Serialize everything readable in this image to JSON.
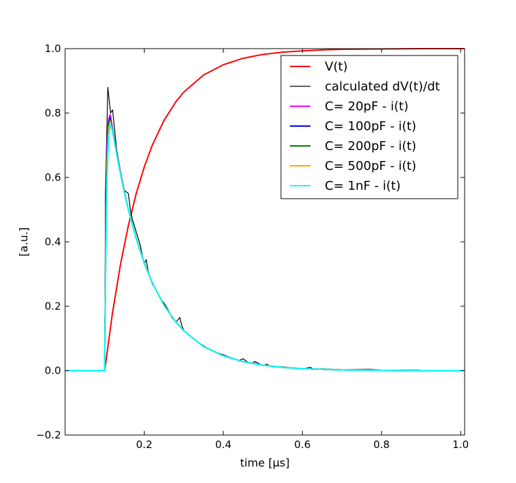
{
  "chart_data": {
    "type": "line",
    "xlabel": "time [μs]",
    "ylabel": "[a.u.]",
    "xlim": [
      0.0,
      1.01
    ],
    "ylim": [
      -0.2,
      1.0
    ],
    "x_ticks": [
      0.2,
      0.4,
      0.6,
      0.8,
      1.0
    ],
    "x_tick_labels": [
      "0.2",
      "0.4",
      "0.6",
      "0.8",
      "1.0"
    ],
    "y_ticks": [
      -0.2,
      0.0,
      0.2,
      0.4,
      0.6,
      0.8,
      1.0
    ],
    "y_tick_labels": [
      "−0.2",
      "0.0",
      "0.2",
      "0.4",
      "0.6",
      "0.8",
      "1.0"
    ],
    "grid": false,
    "legend_position": "top-right",
    "series": [
      {
        "name": "V(t)",
        "color": "#ff0000",
        "x": [
          0.0,
          0.1,
          0.12,
          0.14,
          0.16,
          0.18,
          0.2,
          0.22,
          0.25,
          0.28,
          0.3,
          0.35,
          0.4,
          0.45,
          0.5,
          0.55,
          0.6,
          0.65,
          0.7,
          0.8,
          0.9,
          1.01
        ],
        "y": [
          0.0,
          0.0,
          0.181,
          0.33,
          0.451,
          0.551,
          0.632,
          0.699,
          0.777,
          0.835,
          0.865,
          0.918,
          0.95,
          0.97,
          0.982,
          0.989,
          0.993,
          0.996,
          0.998,
          0.999,
          1.0,
          1.0
        ]
      },
      {
        "name": "calculated dV(t)/dt",
        "color": "#000000",
        "x": [
          0.0,
          0.1,
          0.102,
          0.108,
          0.115,
          0.12,
          0.13,
          0.14,
          0.15,
          0.16,
          0.165,
          0.17,
          0.18,
          0.19,
          0.2,
          0.205,
          0.21,
          0.22,
          0.23,
          0.24,
          0.25,
          0.26,
          0.27,
          0.28,
          0.29,
          0.295,
          0.3,
          0.32,
          0.34,
          0.36,
          0.38,
          0.4,
          0.42,
          0.44,
          0.45,
          0.46,
          0.47,
          0.48,
          0.5,
          0.51,
          0.52,
          0.55,
          0.6,
          0.62,
          0.63,
          0.65,
          0.7,
          0.77,
          0.8,
          0.88,
          0.9,
          1.01
        ],
        "y": [
          0.0,
          0.0,
          0.55,
          0.88,
          0.8,
          0.81,
          0.69,
          0.62,
          0.56,
          0.55,
          0.5,
          0.47,
          0.43,
          0.39,
          0.33,
          0.345,
          0.31,
          0.27,
          0.25,
          0.225,
          0.21,
          0.19,
          0.165,
          0.15,
          0.165,
          0.14,
          0.125,
          0.105,
          0.085,
          0.07,
          0.058,
          0.049,
          0.04,
          0.032,
          0.037,
          0.028,
          0.022,
          0.028,
          0.016,
          0.02,
          0.013,
          0.012,
          0.006,
          0.01,
          0.004,
          0.006,
          0.003,
          0.004,
          0.002,
          0.002,
          0.001,
          0.0
        ]
      },
      {
        "name": "C= 20pF - i(t)",
        "color": "#ff00ff",
        "x": [
          0.0,
          0.1,
          0.103,
          0.106,
          0.11,
          0.114,
          0.12,
          0.13,
          0.14,
          0.15,
          0.16,
          0.18,
          0.2,
          0.22,
          0.25,
          0.28,
          0.3,
          0.35,
          0.4,
          0.45,
          0.5,
          0.55,
          0.6,
          0.7,
          0.8,
          0.9,
          1.01
        ],
        "y": [
          0.0,
          0.0,
          0.45,
          0.7,
          0.78,
          0.795,
          0.75,
          0.68,
          0.615,
          0.555,
          0.5,
          0.41,
          0.335,
          0.274,
          0.203,
          0.151,
          0.124,
          0.075,
          0.046,
          0.028,
          0.017,
          0.01,
          0.006,
          0.002,
          0.001,
          0.0,
          0.0
        ]
      },
      {
        "name": "C= 100pF - i(t)",
        "color": "#0000ff",
        "x": [
          0.0,
          0.1,
          0.103,
          0.106,
          0.11,
          0.114,
          0.12,
          0.13,
          0.14,
          0.15,
          0.16,
          0.18,
          0.2,
          0.22,
          0.25,
          0.28,
          0.3,
          0.35,
          0.4,
          0.45,
          0.5,
          0.55,
          0.6,
          0.7,
          0.8,
          0.9,
          1.01
        ],
        "y": [
          0.0,
          0.0,
          0.43,
          0.68,
          0.77,
          0.787,
          0.748,
          0.678,
          0.613,
          0.554,
          0.5,
          0.41,
          0.335,
          0.274,
          0.203,
          0.151,
          0.124,
          0.075,
          0.046,
          0.028,
          0.017,
          0.01,
          0.006,
          0.002,
          0.001,
          0.0,
          0.0
        ]
      },
      {
        "name": "C= 200pF - i(t)",
        "color": "#008000",
        "x": [
          0.0,
          0.1,
          0.103,
          0.106,
          0.11,
          0.114,
          0.12,
          0.13,
          0.14,
          0.15,
          0.16,
          0.18,
          0.2,
          0.22,
          0.25,
          0.28,
          0.3,
          0.35,
          0.4,
          0.45,
          0.5,
          0.55,
          0.6,
          0.7,
          0.8,
          0.9,
          1.01
        ],
        "y": [
          0.0,
          0.0,
          0.41,
          0.66,
          0.76,
          0.78,
          0.746,
          0.677,
          0.612,
          0.553,
          0.5,
          0.41,
          0.335,
          0.274,
          0.203,
          0.151,
          0.124,
          0.075,
          0.046,
          0.028,
          0.017,
          0.01,
          0.006,
          0.002,
          0.001,
          0.0,
          0.0
        ]
      },
      {
        "name": "C= 500pF - i(t)",
        "color": "#ffa500",
        "x": [
          0.0,
          0.1,
          0.103,
          0.106,
          0.11,
          0.114,
          0.12,
          0.13,
          0.14,
          0.15,
          0.16,
          0.18,
          0.2,
          0.22,
          0.25,
          0.28,
          0.3,
          0.35,
          0.4,
          0.45,
          0.5,
          0.55,
          0.6,
          0.7,
          0.8,
          0.9,
          1.01
        ],
        "y": [
          0.0,
          0.0,
          0.39,
          0.64,
          0.75,
          0.774,
          0.744,
          0.676,
          0.611,
          0.553,
          0.5,
          0.41,
          0.335,
          0.274,
          0.203,
          0.151,
          0.124,
          0.075,
          0.046,
          0.028,
          0.017,
          0.01,
          0.006,
          0.002,
          0.001,
          0.0,
          0.0
        ]
      },
      {
        "name": "C= 1nF - i(t)",
        "color": "#00ffff",
        "x": [
          0.0,
          0.1,
          0.103,
          0.106,
          0.11,
          0.115,
          0.12,
          0.13,
          0.14,
          0.15,
          0.16,
          0.18,
          0.2,
          0.22,
          0.25,
          0.28,
          0.3,
          0.35,
          0.4,
          0.45,
          0.5,
          0.55,
          0.6,
          0.7,
          0.8,
          0.9,
          1.01
        ],
        "y": [
          0.0,
          0.0,
          0.36,
          0.6,
          0.73,
          0.765,
          0.742,
          0.675,
          0.61,
          0.552,
          0.5,
          0.41,
          0.335,
          0.274,
          0.203,
          0.151,
          0.124,
          0.075,
          0.046,
          0.028,
          0.017,
          0.01,
          0.006,
          0.002,
          0.001,
          0.0,
          0.0
        ]
      }
    ]
  }
}
